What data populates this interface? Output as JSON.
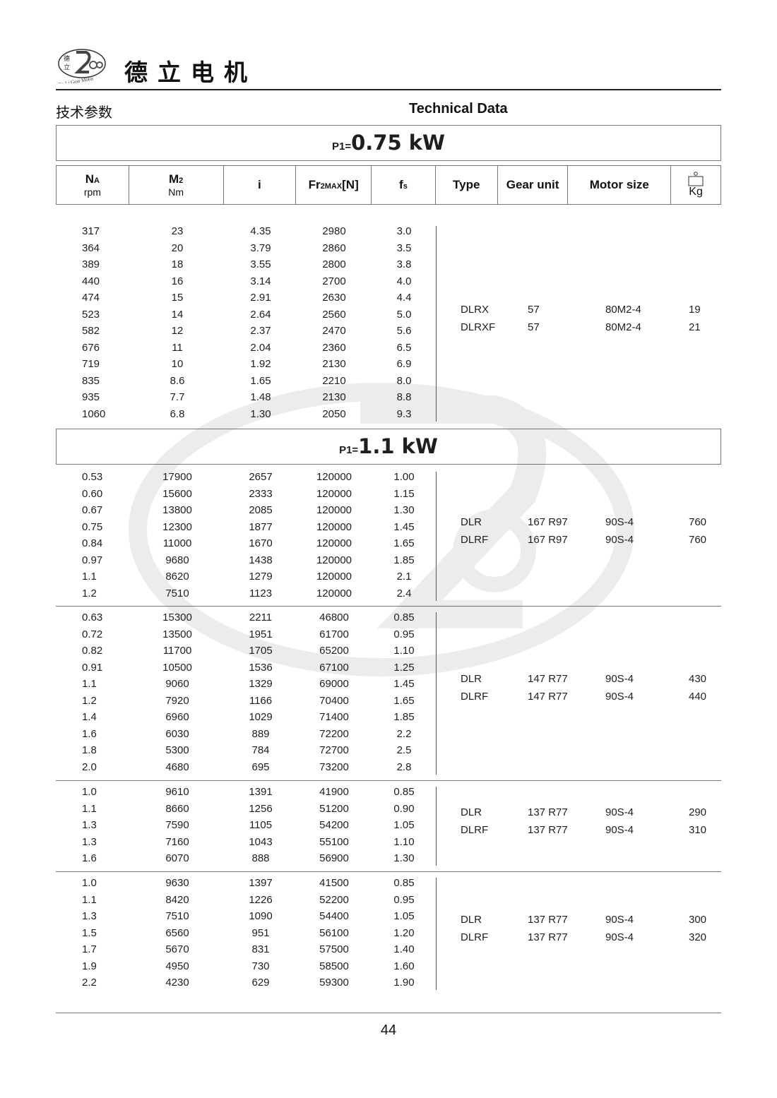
{
  "header": {
    "logo": {
      "text": "德立",
      "caption": "De Li Gear Motor"
    },
    "brand": "德立电机",
    "title_cn": "技术参数",
    "title_en": "Technical Data"
  },
  "watermark": {
    "text_cn": "德立",
    "text_en": "De Li Gear Motor"
  },
  "columns": [
    {
      "main": "N",
      "sub": "A",
      "unit": "rpm"
    },
    {
      "main": "M",
      "sub": "2",
      "unit": "Nm"
    },
    {
      "main": "i",
      "sub": "",
      "unit": ""
    },
    {
      "main": "Fr",
      "sub": "2MAX",
      "suffix": "[N]",
      "unit": ""
    },
    {
      "main": "f",
      "sub": "s",
      "unit": ""
    },
    {
      "main": "Type",
      "sub": "",
      "unit": ""
    },
    {
      "main": "Gear unit",
      "sub": "",
      "unit": ""
    },
    {
      "main": "Motor size",
      "sub": "",
      "unit": ""
    },
    {
      "main": "",
      "sub": "",
      "unit": "Kg",
      "icon": "weight-icon"
    }
  ],
  "sections": [
    {
      "power_prefix": "P1=",
      "power": "0.75 kW",
      "groups": [
        {
          "rows": [
            [
              "317",
              "23",
              "4.35",
              "2980",
              "3.0"
            ],
            [
              "364",
              "20",
              "3.79",
              "2860",
              "3.5"
            ],
            [
              "389",
              "18",
              "3.55",
              "2800",
              "3.8"
            ],
            [
              "440",
              "16",
              "3.14",
              "2700",
              "4.0"
            ],
            [
              "474",
              "15",
              "2.91",
              "2630",
              "4.4"
            ],
            [
              "523",
              "14",
              "2.64",
              "2560",
              "5.0"
            ],
            [
              "582",
              "12",
              "2.37",
              "2470",
              "5.6"
            ],
            [
              "676",
              "11",
              "2.04",
              "2360",
              "6.5"
            ],
            [
              "719",
              "10",
              "1.92",
              "2130",
              "6.9"
            ],
            [
              "835",
              "8.6",
              "1.65",
              "2210",
              "8.0"
            ],
            [
              "935",
              "7.7",
              "1.48",
              "2130",
              "8.8"
            ],
            [
              "1060",
              "6.8",
              "1.30",
              "2050",
              "9.3"
            ]
          ],
          "models": [
            [
              "DLRX",
              "57",
              "80M2-4",
              "19"
            ],
            [
              "DLRXF",
              "57",
              "80M2-4",
              "21"
            ]
          ]
        }
      ]
    },
    {
      "power_prefix": "P1=",
      "power": "1.1 kW",
      "groups": [
        {
          "rows": [
            [
              "0.53",
              "17900",
              "2657",
              "120000",
              "1.00"
            ],
            [
              "0.60",
              "15600",
              "2333",
              "120000",
              "1.15"
            ],
            [
              "0.67",
              "13800",
              "2085",
              "120000",
              "1.30"
            ],
            [
              "0.75",
              "12300",
              "1877",
              "120000",
              "1.45"
            ],
            [
              "0.84",
              "11000",
              "1670",
              "120000",
              "1.65"
            ],
            [
              "0.97",
              "9680",
              "1438",
              "120000",
              "1.85"
            ],
            [
              "1.1",
              "8620",
              "1279",
              "120000",
              "2.1"
            ],
            [
              "1.2",
              "7510",
              "1123",
              "120000",
              "2.4"
            ]
          ],
          "models": [
            [
              "DLR",
              "167  R97",
              "90S-4",
              "760"
            ],
            [
              "DLRF",
              "167  R97",
              "90S-4",
              "760"
            ]
          ]
        },
        {
          "rows": [
            [
              "0.63",
              "15300",
              "2211",
              "46800",
              "0.85"
            ],
            [
              "0.72",
              "13500",
              "1951",
              "61700",
              "0.95"
            ],
            [
              "0.82",
              "11700",
              "1705",
              "65200",
              "1.10"
            ],
            [
              "0.91",
              "10500",
              "1536",
              "67100",
              "1.25"
            ],
            [
              "1.1",
              "9060",
              "1329",
              "69000",
              "1.45"
            ],
            [
              "1.2",
              "7920",
              "1166",
              "70400",
              "1.65"
            ],
            [
              "1.4",
              "6960",
              "1029",
              "71400",
              "1.85"
            ],
            [
              "1.6",
              "6030",
              "889",
              "72200",
              "2.2"
            ],
            [
              "1.8",
              "5300",
              "784",
              "72700",
              "2.5"
            ],
            [
              "2.0",
              "4680",
              "695",
              "73200",
              "2.8"
            ]
          ],
          "models": [
            [
              "DLR",
              "147  R77",
              "90S-4",
              "430"
            ],
            [
              "DLRF",
              "147  R77",
              "90S-4",
              "440"
            ]
          ]
        },
        {
          "rows": [
            [
              "1.0",
              "9610",
              "1391",
              "41900",
              "0.85"
            ],
            [
              "1.1",
              "8660",
              "1256",
              "51200",
              "0.90"
            ],
            [
              "1.3",
              "7590",
              "1105",
              "54200",
              "1.05"
            ],
            [
              "1.3",
              "7160",
              "1043",
              "55100",
              "1.10"
            ],
            [
              "1.6",
              "6070",
              "888",
              "56900",
              "1.30"
            ]
          ],
          "models": [
            [
              "DLR",
              "137  R77",
              "90S-4",
              "290"
            ],
            [
              "DLRF",
              "137  R77",
              "90S-4",
              "310"
            ]
          ]
        },
        {
          "rows": [
            [
              "1.0",
              "9630",
              "1397",
              "41500",
              "0.85"
            ],
            [
              "1.1",
              "8420",
              "1226",
              "52200",
              "0.95"
            ],
            [
              "1.3",
              "7510",
              "1090",
              "54400",
              "1.05"
            ],
            [
              "1.5",
              "6560",
              "951",
              "56100",
              "1.20"
            ],
            [
              "1.7",
              "5670",
              "831",
              "57500",
              "1.40"
            ],
            [
              "1.9",
              "4950",
              "730",
              "58500",
              "1.60"
            ],
            [
              "2.2",
              "4230",
              "629",
              "59300",
              "1.90"
            ]
          ],
          "models": [
            [
              "DLR",
              "137  R77",
              "90S-4",
              "300"
            ],
            [
              "DLRF",
              "137  R77",
              "90S-4",
              "320"
            ]
          ]
        }
      ]
    }
  ],
  "footer": {
    "page_number": "44"
  }
}
